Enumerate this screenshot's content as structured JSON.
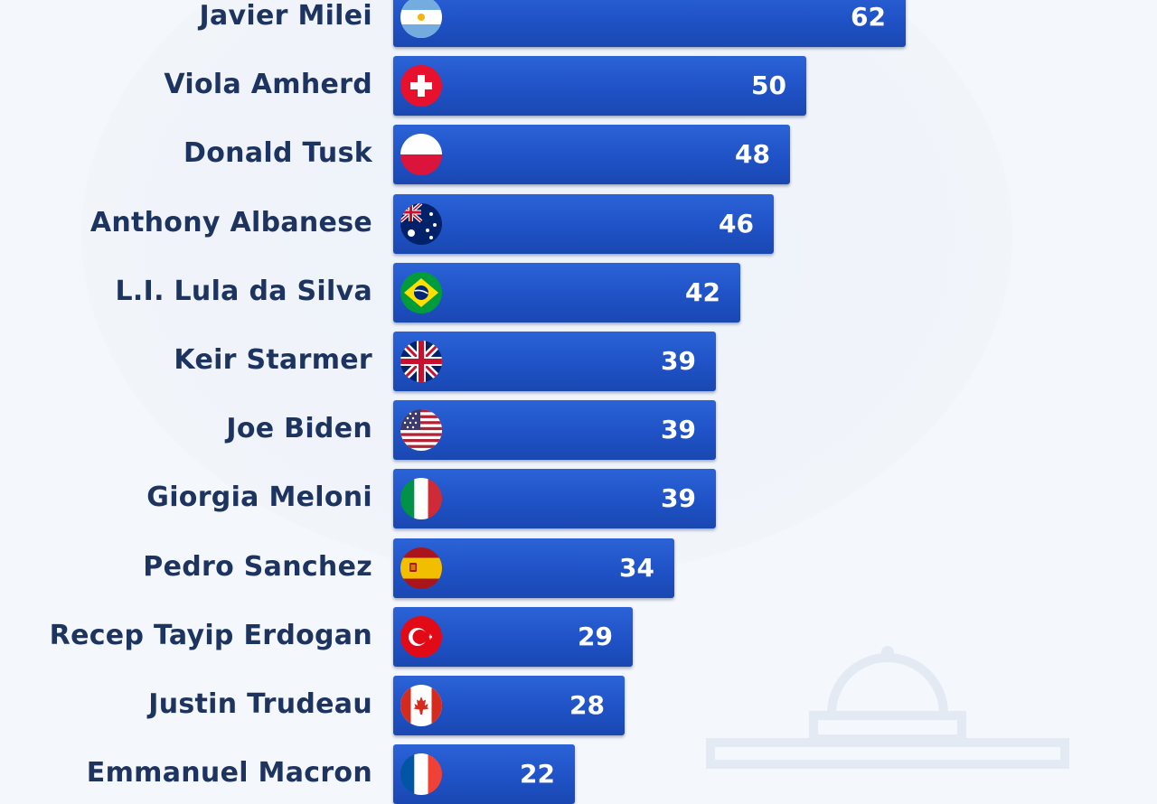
{
  "chart_data": {
    "type": "bar",
    "orientation": "horizontal",
    "categories": [
      "Javier Milei",
      "Viola Amherd",
      "Donald Tusk",
      "Anthony Albanese",
      "L.I. Lula da Silva",
      "Keir Starmer",
      "Joe Biden",
      "Giorgia Meloni",
      "Pedro Sanchez",
      "Recep Tayip Erdogan",
      "Justin Trudeau",
      "Emmanuel Macron"
    ],
    "values": [
      62,
      50,
      48,
      46,
      42,
      39,
      39,
      39,
      34,
      29,
      28,
      22
    ],
    "flags": [
      "argentina-flag-icon",
      "switzerland-flag-icon",
      "poland-flag-icon",
      "australia-flag-icon",
      "brazil-flag-icon",
      "uk-flag-icon",
      "usa-flag-icon",
      "italy-flag-icon",
      "spain-flag-icon",
      "turkey-flag-icon",
      "canada-flag-icon",
      "france-flag-icon"
    ],
    "xlim": [
      0,
      62
    ],
    "grid": false,
    "colors": {
      "bar": "#1f52c6",
      "label": "#1e3460",
      "value": "#ffffff",
      "background": "#f4f7fb"
    }
  }
}
